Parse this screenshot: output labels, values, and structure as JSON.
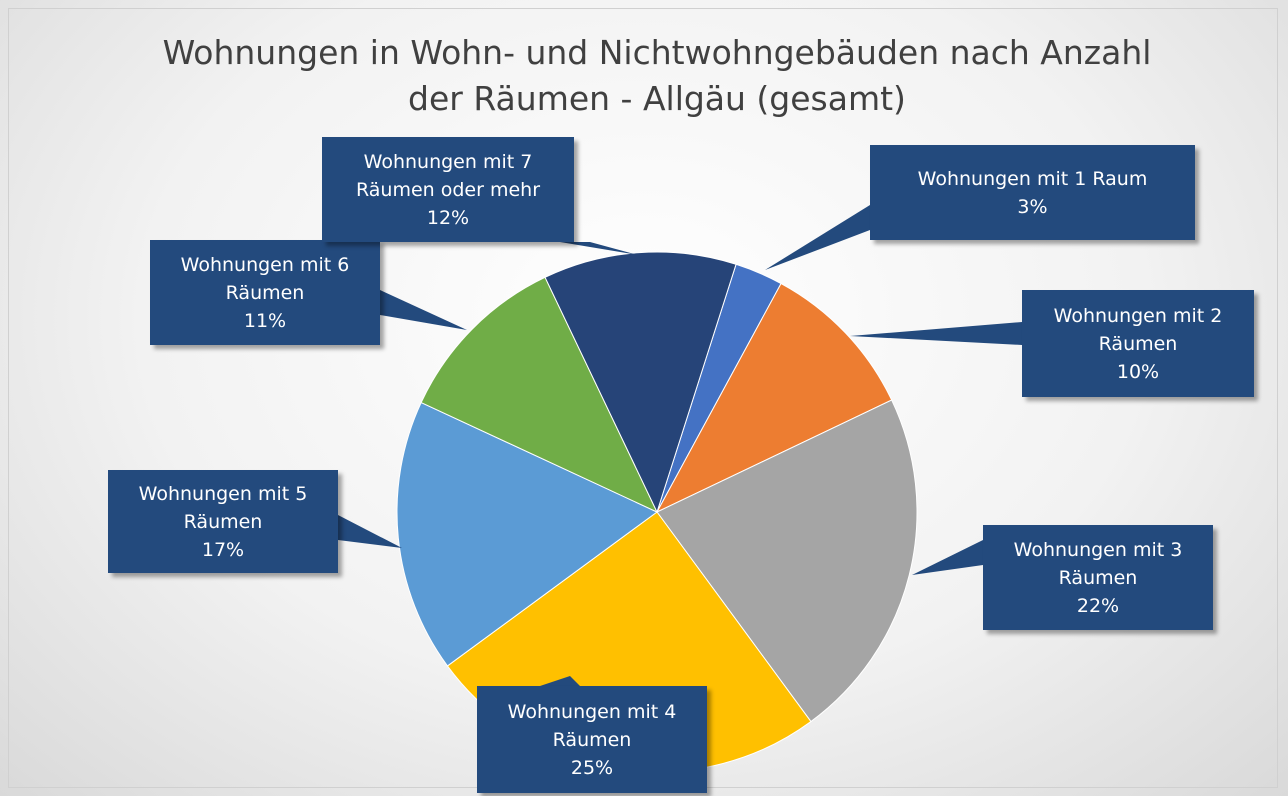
{
  "chart_data": {
    "type": "pie",
    "title": "Wohnungen in Wohn- und Nichtwohngebäuden nach Anzahl der Räumen - Allgäu (gesamt)",
    "categories": [
      "Wohnungen mit 1 Raum",
      "Wohnungen mit 2 Räumen",
      "Wohnungen mit 3 Räumen",
      "Wohnungen mit 4 Räumen",
      "Wohnungen mit 5 Räumen",
      "Wohnungen mit 6 Räumen",
      "Wohnungen mit 7 Räumen oder mehr"
    ],
    "values": [
      3,
      10,
      22,
      25,
      17,
      11,
      12
    ],
    "value_labels": [
      "3%",
      "10%",
      "22%",
      "25%",
      "17%",
      "11%",
      "12%"
    ],
    "colors": [
      "#4472c4",
      "#ed7d31",
      "#a5a5a5",
      "#ffc000",
      "#5b9bd5",
      "#70ad47",
      "#264478"
    ]
  }
}
